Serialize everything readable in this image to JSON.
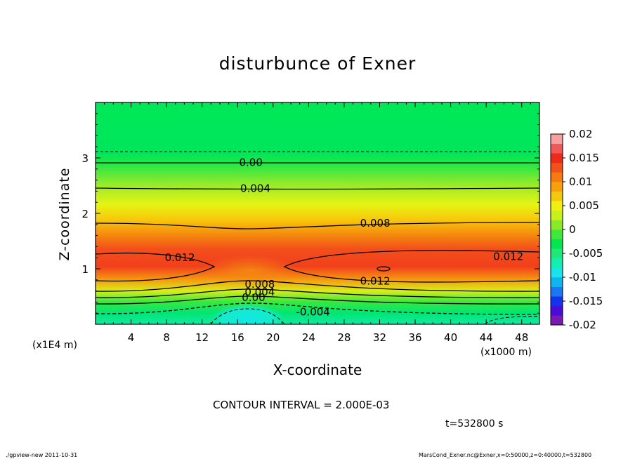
{
  "title": "disturbunce of Exner",
  "ylabel": "Z-coordinate",
  "xlabel": "X-coordinate",
  "y_scale_note": "(x1E4 m)",
  "x_scale_note": "(x1000 m)",
  "contour_interval": "CONTOUR INTERVAL = 2.000E-03",
  "time_label": "t=532800 s",
  "footer_left": "./gpview-new   2011-10-31",
  "footer_right": "MarsCond_Exner.nc@Exner,x=0:50000,z=0:40000,t=532800",
  "chart_data": {
    "type": "heatmap",
    "title": "disturbunce of Exner",
    "xlabel": "X-coordinate",
    "ylabel": "Z-coordinate",
    "xlim": [
      0,
      50
    ],
    "ylim": [
      0,
      4
    ],
    "x_ticks": [
      "4",
      "8",
      "12",
      "16",
      "20",
      "24",
      "28",
      "32",
      "36",
      "40",
      "44",
      "48"
    ],
    "y_ticks": [
      "1",
      "2",
      "3"
    ],
    "colorbar": {
      "range": [
        -0.02,
        0.02
      ],
      "tick_labels": [
        "0.02",
        "0.015",
        "0.01",
        "0.005",
        "0",
        "-0.005",
        "-0.01",
        "-0.015",
        "-0.02"
      ],
      "colors": [
        "#7a1ab4",
        "#4a0cd8",
        "#1433f0",
        "#1a78f2",
        "#10b4ee",
        "#18e4ea",
        "#14efb0",
        "#20e878",
        "#00e64c",
        "#3ee83c",
        "#8aea2a",
        "#caf01c",
        "#f0f010",
        "#f6c80c",
        "#f6a00c",
        "#f57a10",
        "#f4501a",
        "#f02a18",
        "#f0585a",
        "#f7a0a0"
      ]
    },
    "contour_labels": [
      {
        "text": "0.00",
        "x": 17.5,
        "z": 2.92
      },
      {
        "text": "0.004",
        "x": 18,
        "z": 2.45
      },
      {
        "text": "0.008",
        "x": 31.5,
        "z": 1.82
      },
      {
        "text": "0.012",
        "x": 9.5,
        "z": 1.2
      },
      {
        "text": "0.012",
        "x": 46.5,
        "z": 1.22
      },
      {
        "text": "0.012",
        "x": 31.5,
        "z": 0.78
      },
      {
        "text": "0.008",
        "x": 18.5,
        "z": 0.72
      },
      {
        "text": "0.004",
        "x": 18.5,
        "z": 0.58
      },
      {
        "text": "0.00",
        "x": 17.8,
        "z": 0.48
      },
      {
        "text": "-0.004",
        "x": 24.5,
        "z": 0.22
      }
    ]
  }
}
